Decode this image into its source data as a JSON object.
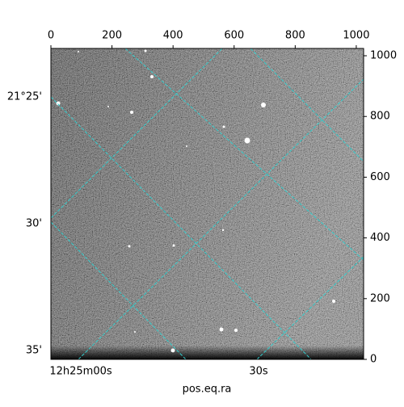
{
  "chart_data": {
    "type": "image",
    "xlabel": "pos.eq.ra",
    "xlim": [
      0,
      1024
    ],
    "xticks": [
      0,
      200,
      400,
      600,
      800,
      1000
    ],
    "ylim": [
      0,
      1024
    ],
    "yticks": [
      0,
      200,
      400,
      600,
      800,
      1000
    ],
    "world_yticks": [
      "21°25'",
      "30'",
      "35'"
    ],
    "world_xticks": [
      "12h25m00s",
      "30s"
    ],
    "grid_color": "#33cccc"
  }
}
